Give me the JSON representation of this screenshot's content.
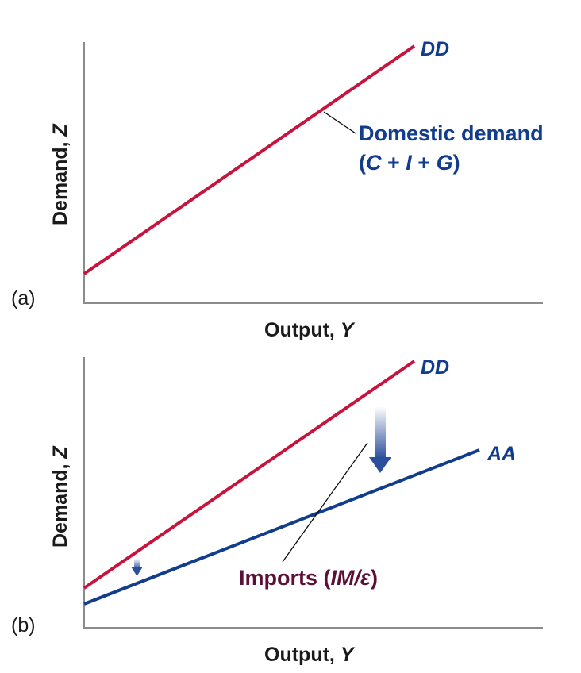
{
  "panel_a": {
    "tag": "(a)",
    "y_axis_label": "Demand, ",
    "y_axis_var": "Z",
    "x_axis_label": "Output, ",
    "x_axis_var": "Y",
    "line_label": "DD",
    "annotation_line1": "Domestic demand",
    "annotation_line2_open": "(",
    "annotation_C": "C",
    "annotation_plus1": " + ",
    "annotation_I": "I",
    "annotation_plus2": " + ",
    "annotation_G": "G",
    "annotation_line2_close": ")"
  },
  "panel_b": {
    "tag": "(b)",
    "y_axis_label": "Demand, ",
    "y_axis_var": "Z",
    "x_axis_label": "Output, ",
    "x_axis_var": "Y",
    "dd_label": "DD",
    "aa_label": "AA",
    "imports_text": "Imports (",
    "imports_var": "IM/ε",
    "imports_close": ")"
  },
  "colors": {
    "dd_line": "#c8143c",
    "aa_line": "#123c8c",
    "label_blue": "#123c8c",
    "imports_label": "#5c1038",
    "axis": "#8c8c8c"
  }
}
